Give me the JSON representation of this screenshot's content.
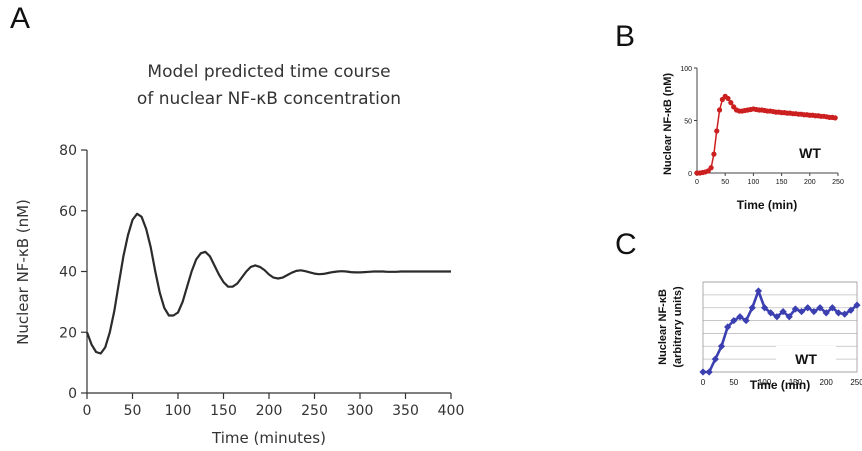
{
  "panels": {
    "a": "A",
    "b": "B",
    "c": "C"
  },
  "chart_data": [
    {
      "type": "line",
      "title": "Model predicted time course",
      "subtitle": "of nuclear NF-κB concentration",
      "xlabel": "Time (minutes)",
      "ylabel": "Nuclear NF-κB (nM)",
      "xlim": [
        0,
        400
      ],
      "ylim": [
        0,
        80
      ],
      "xticks": [
        0,
        50,
        100,
        150,
        200,
        250,
        300,
        350,
        400
      ],
      "yticks": [
        0,
        20,
        40,
        60,
        80
      ],
      "grid": false,
      "color": "#2b2b2b",
      "x": [
        0,
        5,
        10,
        15,
        20,
        25,
        30,
        35,
        40,
        45,
        50,
        55,
        60,
        65,
        70,
        75,
        80,
        85,
        90,
        95,
        100,
        105,
        110,
        115,
        120,
        125,
        130,
        135,
        140,
        145,
        150,
        155,
        160,
        165,
        170,
        175,
        180,
        185,
        190,
        195,
        200,
        205,
        210,
        215,
        220,
        225,
        230,
        235,
        240,
        245,
        250,
        255,
        260,
        265,
        270,
        275,
        280,
        285,
        290,
        295,
        300,
        305,
        310,
        315,
        320,
        325,
        330,
        335,
        340,
        345,
        350,
        355,
        360,
        365,
        370,
        375,
        380,
        385,
        390,
        395,
        400
      ],
      "y": [
        20,
        16,
        13.5,
        13,
        15,
        20,
        27,
        36,
        45,
        52,
        57,
        59,
        58,
        54,
        48,
        40,
        33,
        28,
        25.5,
        25.5,
        26.5,
        30,
        35,
        40,
        44,
        46,
        46.5,
        45,
        42,
        39,
        36.5,
        35,
        35,
        36,
        38,
        40,
        41.5,
        42,
        41.5,
        40.5,
        39,
        38,
        37.7,
        38,
        38.8,
        39.6,
        40.2,
        40.4,
        40.1,
        39.7,
        39.3,
        39.1,
        39.2,
        39.5,
        39.8,
        40,
        40.1,
        40,
        39.8,
        39.7,
        39.7,
        39.8,
        39.9,
        40,
        40,
        40,
        39.9,
        39.9,
        39.9,
        40,
        40,
        40,
        40,
        40,
        40,
        40,
        40,
        40,
        40,
        40,
        40
      ]
    },
    {
      "type": "scatter",
      "xlabel": "Time (min)",
      "ylabel": "Nuclear NF-κB (nM)",
      "xlim": [
        0,
        250
      ],
      "ylim": [
        0,
        100
      ],
      "xticks": [
        0,
        50,
        100,
        150,
        200,
        250
      ],
      "yticks": [
        0,
        50,
        100
      ],
      "annotation": "WT",
      "grid": false,
      "color": "#cc1f1f",
      "x": [
        0,
        5,
        10,
        15,
        20,
        25,
        30,
        35,
        40,
        45,
        50,
        55,
        60,
        65,
        70,
        75,
        80,
        85,
        90,
        95,
        100,
        105,
        110,
        115,
        120,
        125,
        130,
        135,
        140,
        145,
        150,
        155,
        160,
        165,
        170,
        175,
        180,
        185,
        190,
        195,
        200,
        205,
        210,
        215,
        220,
        225,
        230,
        235,
        240,
        245
      ],
      "y": [
        0,
        0,
        0.5,
        1,
        2,
        5,
        18,
        40,
        60,
        70,
        73,
        71,
        67,
        63,
        60,
        59,
        59,
        59.5,
        60,
        60.5,
        61,
        60.5,
        60,
        60,
        59.5,
        59,
        59,
        58.5,
        58,
        58,
        57.5,
        57.5,
        57,
        57,
        56.5,
        56.5,
        56,
        56,
        55.5,
        55.5,
        55,
        55,
        54.5,
        54.5,
        54,
        54,
        53.5,
        53,
        53,
        52.5
      ]
    },
    {
      "type": "line",
      "xlabel": "Time (min)",
      "ylabel": "Nuclear NF-κB",
      "ylabel2": "(arbitrary units)",
      "xlim": [
        0,
        250
      ],
      "ylim": [
        0,
        7
      ],
      "xticks": [
        0,
        50,
        100,
        150,
        200,
        250
      ],
      "annotation": "WT",
      "grid": true,
      "color": "#3b3fb0",
      "x": [
        0,
        10,
        20,
        30,
        40,
        50,
        60,
        70,
        80,
        90,
        100,
        110,
        120,
        130,
        140,
        150,
        160,
        170,
        180,
        190,
        200,
        210,
        220,
        230,
        240,
        250
      ],
      "y": [
        0,
        0,
        1,
        2,
        3.5,
        4,
        4.3,
        4,
        5,
        6.3,
        5,
        4.6,
        4.3,
        4.7,
        4.3,
        4.9,
        4.7,
        5,
        4.7,
        5,
        4.6,
        5,
        4.6,
        4.5,
        4.8,
        5.2
      ]
    }
  ]
}
